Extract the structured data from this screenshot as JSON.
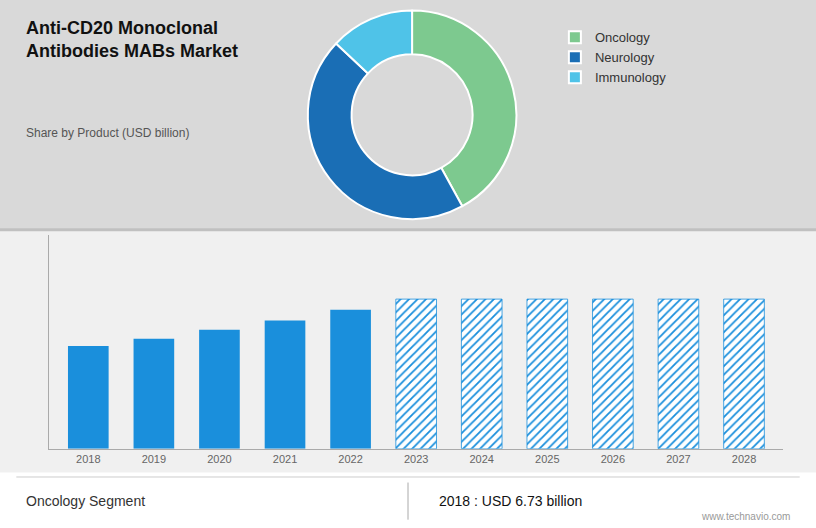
{
  "chart_data": [
    {
      "type": "pie",
      "title": "Anti-CD20 Monoclonal\nAntibodies MABs Market",
      "subtitle": "Share by Product (USD billion)",
      "categories": [
        "Oncology",
        "Neurology",
        "Immunology"
      ],
      "values": [
        42,
        45,
        13
      ],
      "colors": [
        "#7dc98f",
        "#1a6eb5",
        "#4fc3e8"
      ],
      "legend": "right"
    },
    {
      "type": "bar",
      "categories": [
        "2018",
        "2019",
        "2020",
        "2021",
        "2022",
        "2023",
        "2024",
        "2025",
        "2026",
        "2027",
        "2028"
      ],
      "series": [
        {
          "color": "#1a8fdc",
          "marker": "solid",
          "values": [
            6.73,
            7.2,
            7.8,
            8.4,
            9.1,
            null,
            null,
            null,
            null,
            null,
            null
          ]
        },
        {
          "color": "#1a8fdc",
          "marker": "hatch",
          "values": [
            null,
            null,
            null,
            null,
            null,
            9.8,
            9.8,
            9.8,
            9.8,
            9.8,
            9.8
          ]
        }
      ],
      "ylim": [
        0,
        14
      ],
      "grid": false,
      "tick_labels": "x",
      "annotations": [
        "Oncology Segment",
        "2018 : USD 6.73 billion",
        "www.technavio.com"
      ]
    }
  ]
}
